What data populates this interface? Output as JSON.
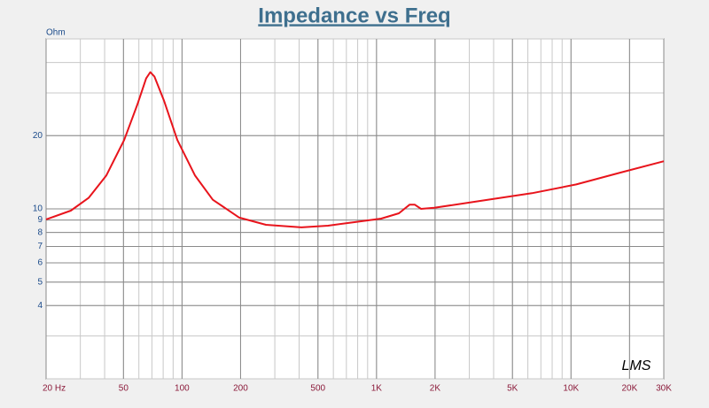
{
  "chart_data": {
    "type": "line",
    "title": "Impedance vs Freq",
    "y_label": "Ohm",
    "watermark": "LMS",
    "x": [
      20,
      26.8,
      33.1,
      40.8,
      50.4,
      58.9,
      65.4,
      68.7,
      72.2,
      80.7,
      94.6,
      116.7,
      143.9,
      197,
      270,
      411,
      563,
      771,
      1057,
      1303,
      1479,
      1574,
      1694,
      1982,
      3724,
      6295,
      10640,
      17960,
      30000
    ],
    "series": [
      {
        "name": "Impedance",
        "color": "#e8141c",
        "values": [
          9.05,
          9.83,
          11.1,
          13.7,
          19.2,
          26.8,
          34.4,
          36.5,
          35.0,
          27.9,
          19.2,
          13.7,
          10.9,
          9.2,
          8.6,
          8.39,
          8.53,
          8.82,
          9.12,
          9.59,
          10.4,
          10.4,
          10.0,
          10.1,
          10.9,
          11.6,
          12.6,
          14.1,
          15.7
        ]
      }
    ],
    "xlim": [
      20,
      30000
    ],
    "ylim": [
      2,
      50
    ],
    "log_x": true,
    "log_y": true,
    "grid": true,
    "xticks": [
      {
        "value": 20,
        "label": "20  Hz"
      },
      50,
      100,
      200,
      500,
      {
        "value": 1000,
        "label": "1K"
      },
      {
        "value": 2000,
        "label": "2K"
      },
      {
        "value": 5000,
        "label": "5K"
      },
      {
        "value": 10000,
        "label": "10K"
      },
      {
        "value": 20000,
        "label": "20K"
      },
      {
        "value": 30000,
        "label": "30K"
      }
    ],
    "yticks": [
      4,
      5,
      6,
      7,
      8,
      9,
      10,
      20
    ]
  }
}
